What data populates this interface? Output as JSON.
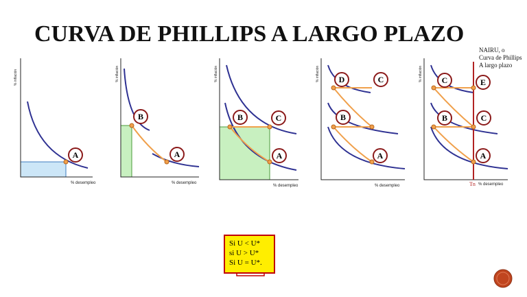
{
  "title": "CURVA DE PHILLIPS A LARGO PLAZO",
  "panels": [
    {
      "y_label": "% inflación",
      "x_label": "% desempleo",
      "points": [
        "A"
      ]
    },
    {
      "y_label": "% inflación",
      "x_label": "% desempleo",
      "points": [
        "B",
        "A"
      ]
    },
    {
      "y_label": "% inflación",
      "x_label": "% desempleo",
      "points": [
        "B",
        "C",
        "A"
      ]
    },
    {
      "y_label": "% inflación",
      "x_label": "% desempleo",
      "points": [
        "D",
        "C",
        "B",
        "A"
      ]
    },
    {
      "y_label": "% inflación",
      "x_label": "% desempleo",
      "points": [
        "C",
        "E",
        "B",
        "C",
        "A"
      ]
    }
  ],
  "nairu_label": [
    "NAIRU, o",
    "Curva de Phillips",
    "A largo plazo"
  ],
  "tn_label": "Tn",
  "note": [
    "Si U < U*",
    "si U > U*",
    "Si U = U*."
  ]
}
